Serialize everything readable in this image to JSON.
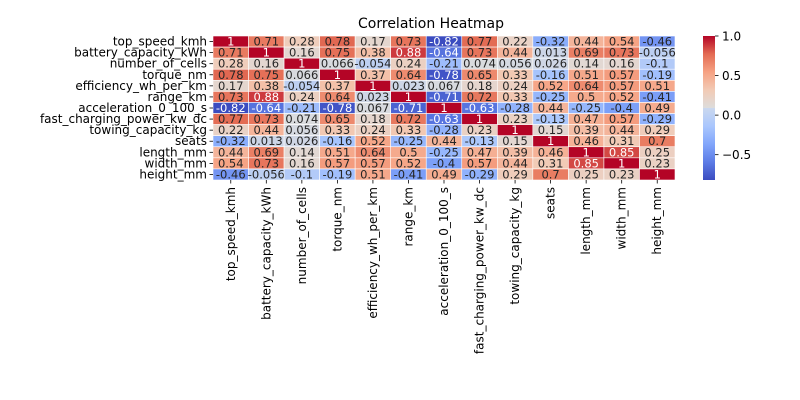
{
  "chart_data": {
    "type": "heatmap",
    "title": "Correlation Heatmap",
    "labels": [
      "top_speed_kmh",
      "battery_capacity_kWh",
      "number_of_cells",
      "torque_nm",
      "efficiency_wh_per_km",
      "range_km",
      "acceleration_0_100_s",
      "fast_charging_power_kw_dc",
      "towing_capacity_kg",
      "seats",
      "length_mm",
      "width_mm",
      "height_mm"
    ],
    "matrix": [
      [
        1,
        0.71,
        0.28,
        0.78,
        0.17,
        0.73,
        -0.82,
        0.77,
        0.22,
        -0.32,
        0.44,
        0.54,
        -0.46
      ],
      [
        0.71,
        1,
        0.16,
        0.75,
        0.38,
        0.88,
        -0.64,
        0.73,
        0.44,
        0.013,
        0.69,
        0.73,
        -0.056
      ],
      [
        0.28,
        0.16,
        1,
        0.066,
        -0.054,
        0.24,
        -0.21,
        0.074,
        0.056,
        0.026,
        0.14,
        0.16,
        -0.1
      ],
      [
        0.78,
        0.75,
        0.066,
        1,
        0.37,
        0.64,
        -0.78,
        0.65,
        0.33,
        -0.16,
        0.51,
        0.57,
        -0.19
      ],
      [
        0.17,
        0.38,
        -0.054,
        0.37,
        1,
        0.023,
        0.067,
        0.18,
        0.24,
        0.52,
        0.64,
        0.57,
        0.51
      ],
      [
        0.73,
        0.88,
        0.24,
        0.64,
        0.023,
        1,
        -0.71,
        0.72,
        0.33,
        -0.25,
        0.5,
        0.52,
        -0.41
      ],
      [
        -0.82,
        -0.64,
        -0.21,
        -0.78,
        0.067,
        -0.71,
        1,
        -0.63,
        -0.28,
        0.44,
        -0.25,
        -0.4,
        0.49
      ],
      [
        0.77,
        0.73,
        0.074,
        0.65,
        0.18,
        0.72,
        -0.63,
        1,
        0.23,
        -0.13,
        0.47,
        0.57,
        -0.29
      ],
      [
        0.22,
        0.44,
        0.056,
        0.33,
        0.24,
        0.33,
        -0.28,
        0.23,
        1,
        0.15,
        0.39,
        0.44,
        0.29
      ],
      [
        -0.32,
        0.013,
        0.026,
        -0.16,
        0.52,
        -0.25,
        0.44,
        -0.13,
        0.15,
        1,
        0.46,
        0.31,
        0.7
      ],
      [
        0.44,
        0.69,
        0.14,
        0.51,
        0.64,
        0.5,
        -0.25,
        0.47,
        0.39,
        0.46,
        1,
        0.85,
        0.25
      ],
      [
        0.54,
        0.73,
        0.16,
        0.57,
        0.57,
        0.52,
        -0.4,
        0.57,
        0.44,
        0.31,
        0.85,
        1,
        0.23
      ],
      [
        -0.46,
        -0.056,
        -0.1,
        -0.19,
        0.51,
        -0.41,
        0.49,
        -0.29,
        0.29,
        0.7,
        0.25,
        0.23,
        1
      ]
    ],
    "cell_labels": [
      [
        "1",
        "0.71",
        "0.28",
        "0.78",
        "0.17",
        "0.73",
        "-0.82",
        "0.77",
        "0.22",
        "-0.32",
        "0.44",
        "0.54",
        "-0.46"
      ],
      [
        "0.71",
        "1",
        "0.16",
        "0.75",
        "0.38",
        "0.88",
        "-0.64",
        "0.73",
        "0.44",
        "0.013",
        "0.69",
        "0.73",
        "-0.056"
      ],
      [
        "0.28",
        "0.16",
        "1",
        "0.066",
        "-0.054",
        "0.24",
        "-0.21",
        "0.074",
        "0.056",
        "0.026",
        "0.14",
        "0.16",
        "-0.1"
      ],
      [
        "0.78",
        "0.75",
        "0.066",
        "1",
        "0.37",
        "0.64",
        "-0.78",
        "0.65",
        "0.33",
        "-0.16",
        "0.51",
        "0.57",
        "-0.19"
      ],
      [
        "0.17",
        "0.38",
        "-0.054",
        "0.37",
        "1",
        "0.023",
        "0.067",
        "0.18",
        "0.24",
        "0.52",
        "0.64",
        "0.57",
        "0.51"
      ],
      [
        "0.73",
        "0.88",
        "0.24",
        "0.64",
        "0.023",
        "1",
        "-0.71",
        "0.72",
        "0.33",
        "-0.25",
        "0.5",
        "0.52",
        "-0.41"
      ],
      [
        "-0.82",
        "-0.64",
        "-0.21",
        "-0.78",
        "0.067",
        "-0.71",
        "1",
        "-0.63",
        "-0.28",
        "0.44",
        "-0.25",
        "-0.4",
        "0.49"
      ],
      [
        "0.77",
        "0.73",
        "0.074",
        "0.65",
        "0.18",
        "0.72",
        "-0.63",
        "1",
        "0.23",
        "-0.13",
        "0.47",
        "0.57",
        "-0.29"
      ],
      [
        "0.22",
        "0.44",
        "0.056",
        "0.33",
        "0.24",
        "0.33",
        "-0.28",
        "0.23",
        "1",
        "0.15",
        "0.39",
        "0.44",
        "0.29"
      ],
      [
        "-0.32",
        "0.013",
        "0.026",
        "-0.16",
        "0.52",
        "-0.25",
        "0.44",
        "-0.13",
        "0.15",
        "1",
        "0.46",
        "0.31",
        "0.7"
      ],
      [
        "0.44",
        "0.69",
        "0.14",
        "0.51",
        "0.64",
        "0.5",
        "-0.25",
        "0.47",
        "0.39",
        "0.46",
        "1",
        "0.85",
        "0.25"
      ],
      [
        "0.54",
        "0.73",
        "0.16",
        "0.57",
        "0.57",
        "0.52",
        "-0.4",
        "0.57",
        "0.44",
        "0.31",
        "0.85",
        "1",
        "0.23"
      ],
      [
        "-0.46",
        "-0.056",
        "-0.1",
        "-0.19",
        "0.51",
        "-0.41",
        "0.49",
        "-0.29",
        "0.29",
        "0.7",
        "0.25",
        "0.23",
        "1"
      ]
    ],
    "colormap": "coolwarm",
    "value_range": [
      -0.82,
      1
    ],
    "colorbar_ticks": [
      1.0,
      0.5,
      0.0,
      -0.5
    ],
    "colorbar_tick_labels": [
      "1.0",
      "0.5",
      "0.0",
      "−0.5"
    ],
    "grid": "white cell borders",
    "annotations": true
  }
}
